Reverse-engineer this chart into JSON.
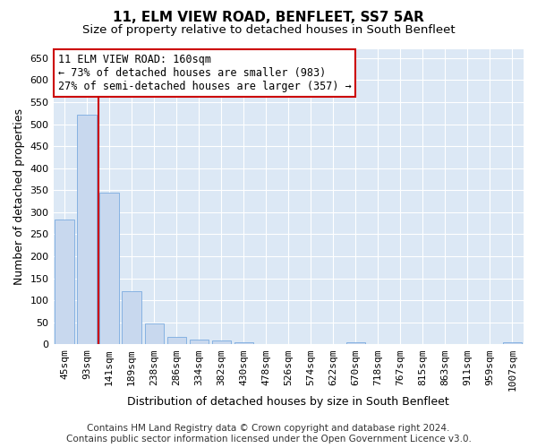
{
  "title": "11, ELM VIEW ROAD, BENFLEET, SS7 5AR",
  "subtitle": "Size of property relative to detached houses in South Benfleet",
  "xlabel": "Distribution of detached houses by size in South Benfleet",
  "ylabel": "Number of detached properties",
  "categories": [
    "45sqm",
    "93sqm",
    "141sqm",
    "189sqm",
    "238sqm",
    "286sqm",
    "334sqm",
    "382sqm",
    "430sqm",
    "478sqm",
    "526sqm",
    "574sqm",
    "622sqm",
    "670sqm",
    "718sqm",
    "767sqm",
    "815sqm",
    "863sqm",
    "911sqm",
    "959sqm",
    "1007sqm"
  ],
  "values": [
    283,
    521,
    344,
    120,
    48,
    17,
    10,
    8,
    5,
    0,
    0,
    0,
    0,
    5,
    0,
    0,
    0,
    0,
    0,
    0,
    5
  ],
  "bar_color": "#c8d8ee",
  "bar_edge_color": "#7aabe0",
  "vline_x": 2,
  "vline_color": "#cc0000",
  "annotation_line1": "11 ELM VIEW ROAD: 160sqm",
  "annotation_line2": "← 73% of detached houses are smaller (983)",
  "annotation_line3": "27% of semi-detached houses are larger (357) →",
  "annotation_box_color": "white",
  "annotation_box_edge_color": "#cc0000",
  "ylim": [
    0,
    670
  ],
  "yticks": [
    0,
    50,
    100,
    150,
    200,
    250,
    300,
    350,
    400,
    450,
    500,
    550,
    600,
    650
  ],
  "footer": "Contains HM Land Registry data © Crown copyright and database right 2024.\nContains public sector information licensed under the Open Government Licence v3.0.",
  "bg_color": "#ffffff",
  "plot_bg_color": "#dce8f5",
  "grid_color": "#ffffff",
  "title_fontsize": 11,
  "subtitle_fontsize": 9.5,
  "label_fontsize": 9,
  "tick_fontsize": 8,
  "footer_fontsize": 7.5
}
